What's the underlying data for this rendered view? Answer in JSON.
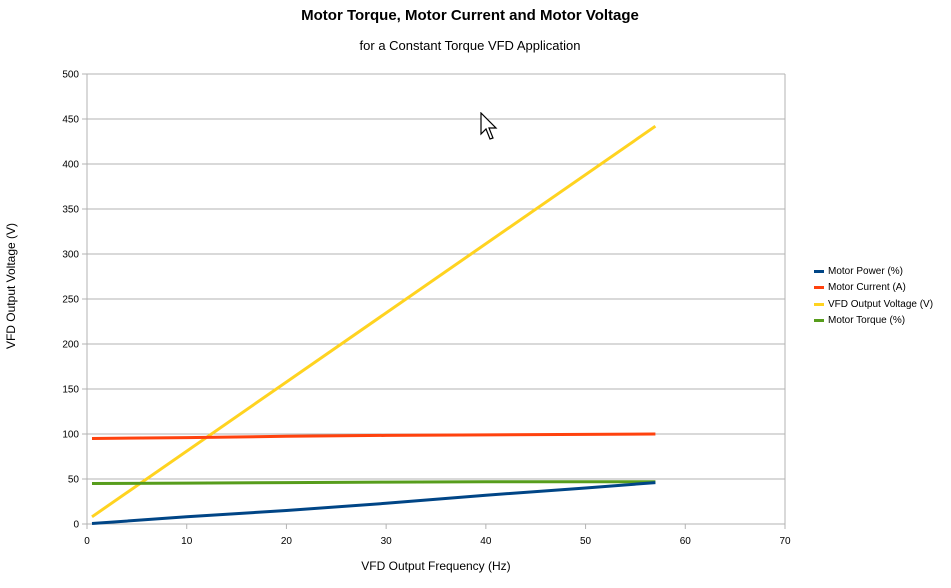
{
  "chart_data": {
    "type": "line",
    "title": "Motor Torque, Motor Current and Motor Voltage",
    "subtitle": "for a Constant Torque VFD Application",
    "xlabel": "VFD Output Frequency (Hz)",
    "ylabel": "VFD Output Voltage (V)",
    "xlim": [
      0,
      70
    ],
    "ylim": [
      0,
      500
    ],
    "xticks": [
      0,
      10,
      20,
      30,
      40,
      50,
      60,
      70
    ],
    "yticks": [
      0,
      50,
      100,
      150,
      200,
      250,
      300,
      350,
      400,
      450,
      500
    ],
    "grid": true,
    "legend_position": "right",
    "series": [
      {
        "name": "Motor Power (%)",
        "color": "#004586",
        "x": [
          0.5,
          10,
          20,
          30,
          40,
          50,
          57
        ],
        "y": [
          0.5,
          8,
          15,
          23,
          32,
          40,
          46
        ]
      },
      {
        "name": "Motor Current (A)",
        "color": "#ff420e",
        "x": [
          0.5,
          10,
          20,
          30,
          40,
          50,
          57
        ],
        "y": [
          95,
          96,
          97.5,
          98.5,
          99,
          99.5,
          100
        ]
      },
      {
        "name": "VFD Output Voltage (V)",
        "color": "#ffd320",
        "x": [
          0.5,
          57
        ],
        "y": [
          8,
          442
        ]
      },
      {
        "name": "Motor Torque (%)",
        "color": "#579d1c",
        "x": [
          0.5,
          10,
          20,
          30,
          40,
          50,
          57
        ],
        "y": [
          45,
          45.5,
          46,
          46.5,
          47,
          47,
          47
        ]
      }
    ]
  }
}
